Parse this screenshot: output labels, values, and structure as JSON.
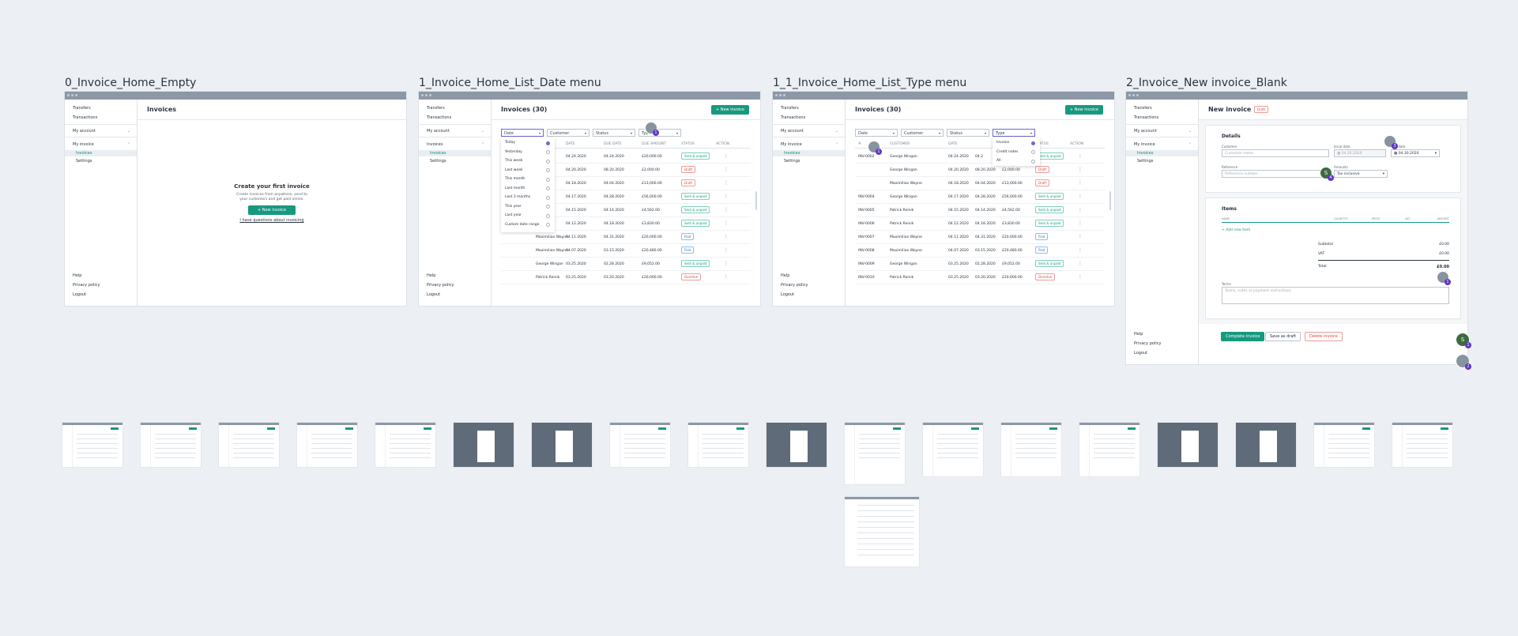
{
  "frames": {
    "f0": {
      "title": "0_Invoice_Home_Empty"
    },
    "f1": {
      "title": "1_Invoice_Home_List_Date menu"
    },
    "f2": {
      "title": "1_1_Invoice_Home_List_Type menu"
    },
    "f3": {
      "title": "2_Invoice_New invoice_Blank"
    }
  },
  "sidebar": {
    "transfers": "Transfers",
    "transactions": "Transactions",
    "my_account": "My account",
    "my_invoice": "My invoice",
    "invoices": "Invoices",
    "settings": "Settings",
    "help": "Help",
    "privacy": "Privacy policy",
    "logout": "Logout"
  },
  "empty": {
    "header": "Invoices",
    "headline": "Create your first invoice",
    "text1": "Create invoices from anywhere, send to",
    "text2": "your customers and get paid online.",
    "button": "+  New invoice",
    "link": "I have questions about invoicing"
  },
  "list": {
    "header": "Invoices (30)",
    "new_button": "+  New invoice",
    "filters": {
      "date": "Date",
      "customer": "Customer",
      "status": "Status",
      "type": "Type"
    },
    "columns": {
      "num": "#",
      "customer": "CUSTOMER",
      "date": "DATE",
      "due": "DUE DATE",
      "amount": "DUE AMOUNT",
      "status": "STATUS",
      "action": "ACTION"
    },
    "date_menu": [
      "Today",
      "Yesterday",
      "This week",
      "Last week",
      "This month",
      "Last month",
      "Last 3 months",
      "This year",
      "Last year",
      "Custom date range"
    ],
    "type_menu": [
      "Invoice",
      "Credit notes",
      "All"
    ]
  },
  "rows_date": [
    {
      "num": "",
      "customer": "gan",
      "date": "04.24.2020",
      "due": "04.24.2020",
      "amount": "£20,000.00",
      "status": "Sent & unpaid",
      "cls": "b-sent"
    },
    {
      "num": "",
      "customer": "gan",
      "date": "04.20.2020",
      "due": "08.20.2020",
      "amount": "£2,000.00",
      "status": "Draft",
      "cls": "b-draft"
    },
    {
      "num": "",
      "customer": "ayne",
      "date": "04.18.2020",
      "due": "04.04.2020",
      "amount": "£13,000.00",
      "status": "Draft",
      "cls": "b-draft"
    },
    {
      "num": "",
      "customer": "gan",
      "date": "04.17.2020",
      "due": "04.28.2020",
      "amount": "£56,000.00",
      "status": "Sent & unpaid",
      "cls": "b-sent"
    },
    {
      "num": "",
      "customer": "tak",
      "date": "04.15.2020",
      "due": "04.14.2020",
      "amount": "£4,562.00",
      "status": "Sent & unpaid",
      "cls": "b-sent"
    },
    {
      "num": "",
      "customer": "tak",
      "date": "04.12.2020",
      "due": "04.18.2020",
      "amount": "£3,830.00",
      "status": "Sent & unpaid",
      "cls": "b-sent"
    },
    {
      "num": "INV-0007",
      "customer": "Maximilian Wayne",
      "date": "04.11.2020",
      "due": "04.31.2020",
      "amount": "£20,000.00",
      "status": "Paid",
      "cls": "b-paid"
    },
    {
      "num": "INV-0008",
      "customer": "Maximilian Wayne",
      "date": "04.07.2020",
      "due": "03.15.2020",
      "amount": "£20,480.00",
      "status": "Paid",
      "cls": "b-paid"
    },
    {
      "num": "INV-0009",
      "customer": "George Wingan",
      "date": "03.25.2020",
      "due": "02.28.2020",
      "amount": "£9,052.00",
      "status": "Sent & unpaid",
      "cls": "b-sent"
    },
    {
      "num": "INV-0010",
      "customer": "Patrick Reinik",
      "date": "03.25.2020",
      "due": "03.20.2020",
      "amount": "£20,000.00",
      "status": "Overdue",
      "cls": "b-over"
    }
  ],
  "rows_type": [
    {
      "num": "INV-0002",
      "customer": "George Wingan",
      "date": "04.24.2020",
      "due": "04.2",
      "amount": "",
      "status": "Sent & unpaid",
      "cls": "b-sent"
    },
    {
      "num": "",
      "customer": "George Wingan",
      "date": "04.20.2020",
      "due": "08.20.2020",
      "amount": "£2,000.00",
      "status": "Draft",
      "cls": "b-draft"
    },
    {
      "num": "",
      "customer": "Maximilian Wayne",
      "date": "04.18.2020",
      "due": "04.04.2020",
      "amount": "£13,000.00",
      "status": "Draft",
      "cls": "b-draft"
    },
    {
      "num": "INV-0004",
      "customer": "George Wingan",
      "date": "04.17.2020",
      "due": "04.28.2020",
      "amount": "£56,000.00",
      "status": "Sent & unpaid",
      "cls": "b-sent"
    },
    {
      "num": "INV-0005",
      "customer": "Patrick Reinik",
      "date": "04.15.2020",
      "due": "04.14.2020",
      "amount": "£4,562.00",
      "status": "Sent & unpaid",
      "cls": "b-sent"
    },
    {
      "num": "INV-0006",
      "customer": "Patrick Reinik",
      "date": "04.12.2020",
      "due": "04.18.2020",
      "amount": "£3,830.00",
      "status": "Sent & unpaid",
      "cls": "b-sent"
    },
    {
      "num": "INV-0007",
      "customer": "Maximilian Wayne",
      "date": "04.11.2020",
      "due": "04.31.2020",
      "amount": "£20,000.00",
      "status": "Paid",
      "cls": "b-paid"
    },
    {
      "num": "INV-0008",
      "customer": "Maximilian Wayne",
      "date": "04.07.2020",
      "due": "03.15.2020",
      "amount": "£20,480.00",
      "status": "Paid",
      "cls": "b-paid"
    },
    {
      "num": "INV-0009",
      "customer": "George Wingan",
      "date": "03.25.2020",
      "due": "02.28.2020",
      "amount": "£9,052.00",
      "status": "Sent & unpaid",
      "cls": "b-sent"
    },
    {
      "num": "INV-0010",
      "customer": "Patrick Reinik",
      "date": "03.25.2020",
      "due": "03.20.2020",
      "amount": "£20,000.00",
      "status": "Overdue",
      "cls": "b-over"
    }
  ],
  "new_invoice": {
    "header": "New invoice",
    "badge": "Draft",
    "details": "Details",
    "customer_label": "Customer",
    "customer_ph": "Customer name",
    "issue_label": "Issue date",
    "issue_val": "04.30.2020",
    "due_label": "Due date",
    "due_val": "04.30.2020",
    "reference_label": "Reference",
    "reference_ph": "Reference number",
    "amounts_label": "Amounts",
    "amounts_val": "Tax inclusive",
    "items": "Items",
    "col_name": "NAME",
    "col_qty": "QUANTITY",
    "col_price": "PRICE",
    "col_vat": "VAT",
    "col_amount": "AMOUNT",
    "add_item": "+  Add new item",
    "subtotal": "Subtotal",
    "subtotal_val": "£0.00",
    "vat": "VAT",
    "vat_val": "£0.00",
    "total": "Total",
    "total_val": "£0.00",
    "terms_label": "Terms",
    "terms_ph": "Terms, notes or payment instructions",
    "complete": "Complete invoice",
    "draft": "Save as draft",
    "delete": "Delete invoice"
  },
  "avatars": {
    "n1": "1",
    "n2": "2",
    "n3": "3",
    "n4": "4",
    "s": "S"
  },
  "colors": {
    "accent": "#17997f",
    "draft": "#d8483c",
    "paid": "#3d7fd2",
    "selection": "#6b68d8",
    "badge": "#6134c9"
  }
}
